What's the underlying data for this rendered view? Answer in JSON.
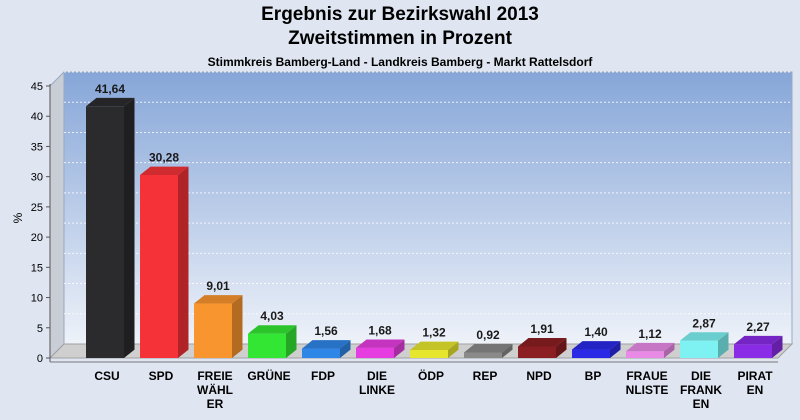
{
  "chart_data": {
    "type": "bar",
    "title": "Ergebnis zur Bezirkswahl 2013",
    "subtitle": "Zweitstimmen in Prozent",
    "caption": "Stimmkreis Bamberg-Land - Landkreis Bamberg - Markt Rattelsdorf",
    "ylabel": "%",
    "ylim": [
      0,
      45
    ],
    "yticks": [
      "0",
      "5",
      "10",
      "15",
      "20",
      "25",
      "30",
      "35",
      "40",
      "45"
    ],
    "grid": true,
    "categories": [
      [
        "CSU"
      ],
      [
        "SPD"
      ],
      [
        "FREIE",
        "WÄHL",
        "ER"
      ],
      [
        "GRÜNE"
      ],
      [
        "FDP"
      ],
      [
        "DIE",
        "LINKE"
      ],
      [
        "ÖDP"
      ],
      [
        "REP"
      ],
      [
        "NPD"
      ],
      [
        "BP"
      ],
      [
        "FRAUE",
        "NLISTE"
      ],
      [
        "DIE",
        "FRANK",
        "EN"
      ],
      [
        "PIRAT",
        "EN"
      ]
    ],
    "values": [
      41.64,
      30.28,
      9.01,
      4.03,
      1.56,
      1.68,
      1.32,
      0.92,
      1.91,
      1.4,
      1.12,
      2.87,
      2.27
    ],
    "value_labels": [
      "41,64",
      "30,28",
      "9,01",
      "4,03",
      "1,56",
      "1,68",
      "1,32",
      "0,92",
      "1,91",
      "1,40",
      "1,12",
      "2,87",
      "2,27"
    ],
    "colors": [
      "#2b2b2e",
      "#f53237",
      "#f9952f",
      "#33e633",
      "#2e86e6",
      "#e63de0",
      "#e6e62e",
      "#8a8a8a",
      "#8b1e22",
      "#2a2ae6",
      "#e98be6",
      "#7ef2f2",
      "#8a2be6"
    ]
  }
}
